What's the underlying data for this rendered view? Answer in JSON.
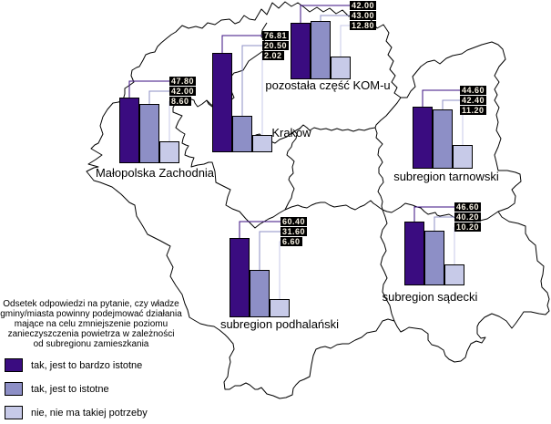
{
  "description": {
    "lines": [
      "Odsetek odpowiedzi na pytanie, czy władze",
      "gminy/miasta powinny podejmować działania",
      "mające na celu zmniejszenie poziomu",
      "zanieczyszczenia powietrza w zależności",
      "od subregionu zamieszkania"
    ]
  },
  "legend": {
    "items": [
      {
        "label": "tak, jest to bardzo istotne",
        "color": "#3A0C80"
      },
      {
        "label": "tak, jest to istotne",
        "color": "#8D8FC6"
      },
      {
        "label": "nie, nie ma takiej potrzeby",
        "color": "#C7CAE8"
      }
    ]
  },
  "colors": {
    "map_outline": "#000000",
    "label_box_bg": "#000000",
    "label_box_text": "#F7F1E3"
  },
  "chart_data": {
    "type": "bar",
    "title": "Odsetek odpowiedzi na pytanie, czy władze gminy/miasta powinny podejmować działania mające na celu zmniejszenie poziomu zanieczyszczenia powietrza w zależności od subregionu zamieszkania",
    "series": [
      "tak, jest to bardzo istotne",
      "tak, jest to istotne",
      "nie, nie ma takiej potrzeby"
    ],
    "series_colors": [
      "#3A0C80",
      "#8D8FC6",
      "#C7CAE8"
    ],
    "unit": "%",
    "regions": [
      {
        "name": "Małopolska Zachodnia",
        "values": [
          47.8,
          42.0,
          8.6
        ]
      },
      {
        "name": "Kraków",
        "values": [
          76.81,
          20.5,
          2.02
        ]
      },
      {
        "name": "pozostała część KOM-u",
        "values": [
          42.0,
          43.0,
          12.8
        ]
      },
      {
        "name": "subregion tarnowski",
        "values": [
          44.6,
          42.4,
          11.2
        ]
      },
      {
        "name": "subregion sądecki",
        "values": [
          46.6,
          40.2,
          10.2
        ]
      },
      {
        "name": "subregion podhalański",
        "values": [
          60.4,
          31.6,
          6.6
        ]
      }
    ]
  }
}
